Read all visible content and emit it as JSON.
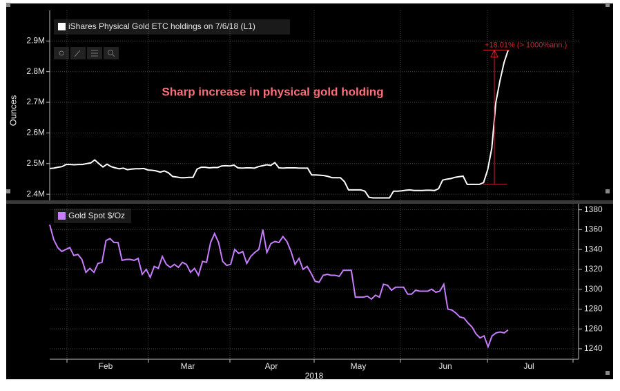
{
  "chart_data": [
    {
      "type": "line",
      "series": [
        {
          "name": "iShares Physical Gold ETC holdings on 7/6/18 (L1)",
          "color": "#ffffff",
          "values": [
            2484000,
            2485000,
            2488000,
            2490000,
            2497000,
            2497000,
            2496000,
            2497000,
            2497000,
            2500000,
            2502000,
            2512000,
            2500000,
            2489000,
            2498000,
            2490000,
            2486000,
            2483000,
            2485000,
            2480000,
            2482000,
            2483000,
            2483000,
            2484000,
            2479000,
            2478000,
            2476000,
            2472000,
            2476000,
            2470000,
            2458000,
            2456000,
            2454000,
            2454000,
            2455000,
            2455000,
            2482000,
            2488000,
            2488000,
            2486000,
            2487000,
            2487000,
            2492000,
            2493000,
            2492000,
            2495000,
            2486000,
            2485000,
            2486000,
            2486000,
            2485000,
            2490000,
            2493000,
            2496000,
            2494000,
            2503000,
            2486000,
            2485000,
            2486000,
            2486000,
            2486000,
            2485000,
            2485000,
            2485000,
            2463000,
            2463000,
            2462000,
            2461000,
            2458000,
            2454000,
            2454000,
            2454000,
            2441000,
            2414000,
            2414000,
            2414000,
            2414000,
            2410000,
            2390000,
            2388000,
            2388000,
            2388000,
            2388000,
            2388000,
            2410000,
            2410000,
            2411000,
            2413000,
            2414000,
            2412000,
            2412000,
            2412000,
            2413000,
            2413000,
            2412000,
            2418000,
            2446000,
            2449000,
            2451000,
            2455000,
            2457000,
            2459000,
            2432000,
            2432000,
            2432000,
            2432000,
            2438000,
            2480000,
            2550000,
            2700000,
            2770000,
            2830000,
            2870000
          ]
        }
      ],
      "ylim": [
        2380000,
        3000000
      ],
      "yticks": [
        {
          "value": 2400000,
          "label": "2.4M"
        },
        {
          "value": 2500000,
          "label": "2.5M"
        },
        {
          "value": 2600000,
          "label": "2.6M"
        },
        {
          "value": 2700000,
          "label": "2.7M"
        },
        {
          "value": 2800000,
          "label": "2.8M"
        },
        {
          "value": 2900000,
          "label": "2.9M"
        }
      ],
      "ylabel": "Ounces",
      "grid": true,
      "annotations": [
        "Sharp increase in physical gold holding",
        "+18.01% (> 1000%ann.)"
      ]
    },
    {
      "type": "line",
      "series": [
        {
          "name": "Gold Spot $/Oz",
          "color": "#c77dff",
          "values": [
            1365,
            1350,
            1342,
            1338,
            1340,
            1342,
            1334,
            1335,
            1330,
            1317,
            1321,
            1317,
            1326,
            1327,
            1349,
            1351,
            1347,
            1347,
            1329,
            1330,
            1330,
            1329,
            1331,
            1315,
            1320,
            1312,
            1323,
            1321,
            1333,
            1325,
            1322,
            1325,
            1322,
            1327,
            1325,
            1317,
            1321,
            1314,
            1328,
            1327,
            1347,
            1356,
            1347,
            1328,
            1324,
            1325,
            1340,
            1336,
            1338,
            1326,
            1333,
            1337,
            1340,
            1360,
            1337,
            1346,
            1348,
            1347,
            1353,
            1348,
            1338,
            1325,
            1331,
            1320,
            1323,
            1316,
            1308,
            1307,
            1314,
            1315,
            1314,
            1314,
            1313,
            1319,
            1319,
            1319,
            1292,
            1292,
            1292,
            1293,
            1290,
            1294,
            1292,
            1305,
            1304,
            1299,
            1302,
            1302,
            1302,
            1295,
            1295,
            1299,
            1298,
            1298,
            1298,
            1300,
            1297,
            1298,
            1305,
            1280,
            1279,
            1276,
            1272,
            1271,
            1266,
            1262,
            1255,
            1251,
            1253,
            1242,
            1253,
            1256,
            1257,
            1256,
            1259
          ]
        }
      ],
      "ylim": [
        1229.5,
        1386
      ],
      "yticks": [
        1240,
        1260,
        1280,
        1300,
        1320,
        1340,
        1360,
        1380
      ],
      "grid": true,
      "x_labels": [
        "Feb",
        "Mar",
        "Apr",
        "May",
        "Jun",
        "Jul"
      ],
      "x_title": "2018"
    }
  ]
}
